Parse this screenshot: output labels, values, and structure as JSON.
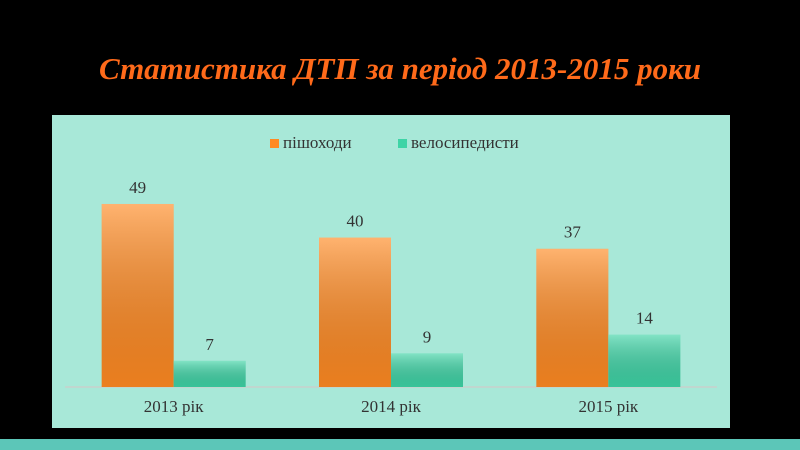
{
  "chart_data": {
    "type": "bar",
    "title": "Статистика ДТП за період 2013-2015 роки",
    "categories": [
      "2013 рік",
      "2014 рік",
      "2015 рік"
    ],
    "series": [
      {
        "name": "пішоходи",
        "color": "#ff8a22",
        "values": [
          49,
          40,
          37
        ]
      },
      {
        "name": "велосипедисти",
        "color": "#3ed4a6",
        "values": [
          7,
          9,
          14
        ]
      }
    ]
  }
}
